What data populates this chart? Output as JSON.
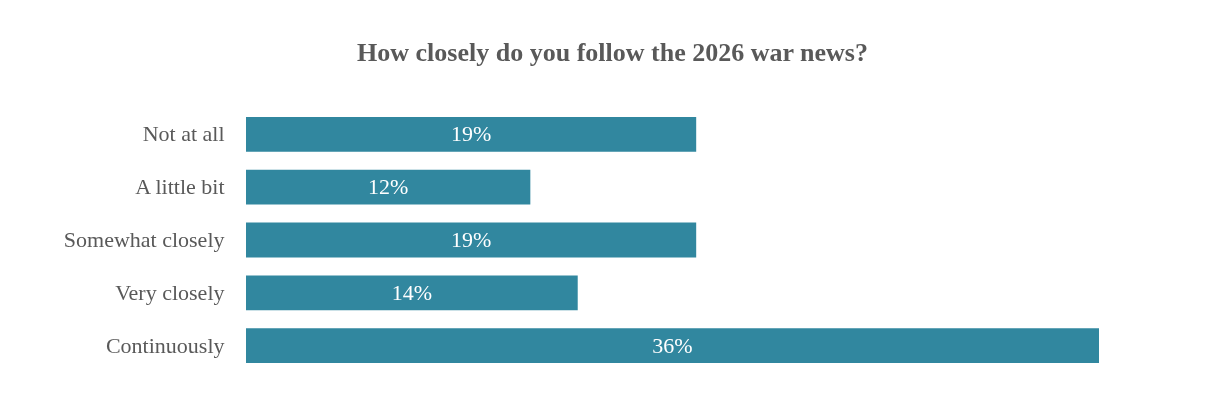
{
  "chart_data": {
    "type": "bar",
    "orientation": "horizontal",
    "title": "How closely do you follow the 2026 war news?",
    "categories": [
      "Not at all",
      "A little bit",
      "Somewhat closely",
      "Very closely",
      "Continuously"
    ],
    "values": [
      19,
      12,
      19,
      14,
      36
    ],
    "value_labels": [
      "19%",
      "12%",
      "19%",
      "14%",
      "36%"
    ],
    "color": "#31879f"
  }
}
